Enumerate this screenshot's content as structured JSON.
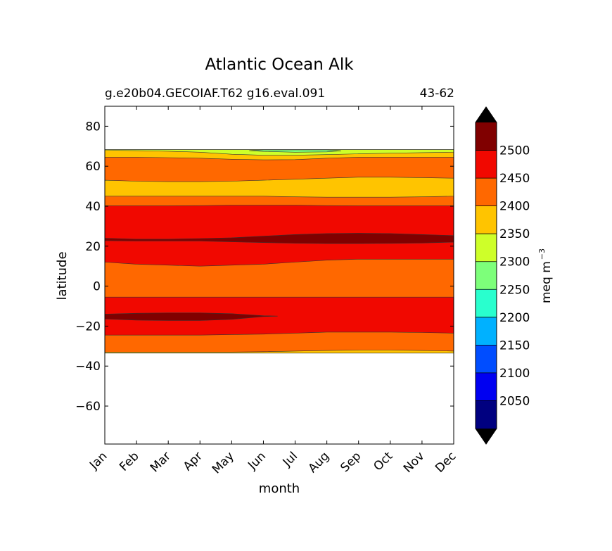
{
  "chart_data": {
    "type": "contour",
    "title": "Atlantic Ocean Alk",
    "subtitle_left": "g.e20b04.GECOIAF.T62 g16.eval.091",
    "subtitle_right": "43-62",
    "xlabel": "month",
    "ylabel": "latitude",
    "x_ticks": [
      "Jan",
      "Feb",
      "Mar",
      "Apr",
      "May",
      "Jun",
      "Jul",
      "Aug",
      "Sep",
      "Oct",
      "Nov",
      "Dec"
    ],
    "y_ticks": [
      80,
      60,
      40,
      20,
      0,
      -20,
      -40,
      -60
    ],
    "ylim": [
      -79,
      90
    ],
    "colorbar": {
      "label": "meq m",
      "label_exponent": "−3",
      "levels": [
        2000,
        2050,
        2100,
        2150,
        2200,
        2250,
        2300,
        2350,
        2400,
        2450,
        2500,
        2550
      ],
      "tick_labels": [
        "2050",
        "2100",
        "2150",
        "2200",
        "2250",
        "2300",
        "2350",
        "2400",
        "2450",
        "2500"
      ],
      "colors": [
        "#000080",
        "#0000f1",
        "#004dff",
        "#00b1ff",
        "#29ffce",
        "#7dff7a",
        "#ceff29",
        "#ffc400",
        "#ff6800",
        "#f10800",
        "#800000"
      ],
      "extend_colors": {
        "under": "#000000",
        "over": "#000000"
      }
    },
    "bands": [
      {
        "level": "2350-2400",
        "color": "#ffc400",
        "top": [
          68.3,
          68.3,
          68.3,
          68.3,
          68.3,
          68.3,
          68.3,
          68.3,
          68.3,
          68.3,
          68.3,
          68.3
        ],
        "bottom": [
          -33.5,
          -33.5,
          -33.5,
          -33.5,
          -33.5,
          -33.5,
          -33.5,
          -33.5,
          -33.5,
          -33.5,
          -33.5,
          -33.5
        ]
      },
      {
        "level": "2400-2450",
        "color": "#ff6800",
        "top": [
          64.5,
          64.5,
          64.3,
          64,
          63.5,
          63.2,
          63.3,
          64,
          64.5,
          64.5,
          64.5,
          64.5
        ],
        "bottom": [
          -33,
          -33,
          -33,
          -33,
          -33,
          -32.8,
          -32.5,
          -32.2,
          -32,
          -32,
          -32.2,
          -32.5
        ]
      },
      {
        "level": "2450-2500",
        "color": "#f10800",
        "top": [
          40.2,
          40.2,
          40.2,
          40.3,
          40.5,
          40.5,
          40.5,
          40.3,
          40.2,
          40.2,
          40.2,
          40.2
        ],
        "bottom": [
          -24.5,
          -24.5,
          -24.5,
          -24.5,
          -24.2,
          -24,
          -23.5,
          -23,
          -23,
          -23,
          -23.2,
          -23.5
        ]
      },
      {
        "level": "2400-2450",
        "color": "#ff6800",
        "top": [
          12,
          11,
          10.5,
          10,
          10.5,
          11,
          12,
          13,
          13.5,
          13.5,
          13.5,
          13.5
        ],
        "bottom": [
          -5.5,
          -5.5,
          -5.5,
          -5.5,
          -5.5,
          -5.5,
          -5.5,
          -5.5,
          -5.5,
          -5.5,
          -5.5,
          -5.5
        ]
      },
      {
        "level": "2350-2400",
        "color": "#ffc400",
        "top": [
          53,
          52.5,
          52.3,
          52.3,
          52.5,
          53,
          53.5,
          54,
          54.5,
          54.5,
          54.3,
          54
        ],
        "bottom": [
          45,
          45,
          45,
          45,
          45,
          45,
          44.7,
          44.5,
          44.5,
          44.5,
          44.7,
          45
        ]
      },
      {
        "level": "2300-2350",
        "color": "#ceff29",
        "top": [
          68.3,
          68.3,
          68.3,
          68.3,
          68.3,
          68.3,
          68.3,
          68.3,
          68.3,
          68.3,
          68.3,
          68.3
        ],
        "bottom": [
          68,
          67.8,
          67.5,
          67,
          66,
          65.5,
          65.5,
          65.8,
          66.2,
          66.5,
          66.8,
          67
        ]
      },
      {
        "level": "2250-2300",
        "color": "#7dff7a",
        "top": [
          null,
          null,
          null,
          null,
          null,
          68.2,
          68.2,
          68.2,
          null,
          null,
          null,
          null
        ],
        "bottom": [
          null,
          null,
          null,
          null,
          null,
          67.4,
          67,
          67.2,
          null,
          null,
          null,
          null
        ]
      },
      {
        "level": "2500-2550",
        "color": "#800000",
        "top": [
          24,
          23.5,
          23.5,
          23.8,
          24.2,
          25,
          25.8,
          26.3,
          26.5,
          26.3,
          25.8,
          25.3
        ],
        "bottom": [
          22.8,
          22.6,
          22.6,
          22.6,
          22.2,
          21.8,
          21.5,
          21.3,
          21.3,
          21.4,
          21.6,
          22
        ]
      },
      {
        "level": "2500-2550",
        "color": "#800000",
        "top": [
          -14,
          -13.6,
          -13.4,
          -13.4,
          -13.8,
          -14.8,
          null,
          null,
          null,
          null,
          null,
          null
        ],
        "bottom": [
          -16.4,
          -17,
          -17.2,
          -17.2,
          -16.6,
          -15.2,
          null,
          null,
          null,
          null,
          null,
          null
        ]
      }
    ]
  }
}
